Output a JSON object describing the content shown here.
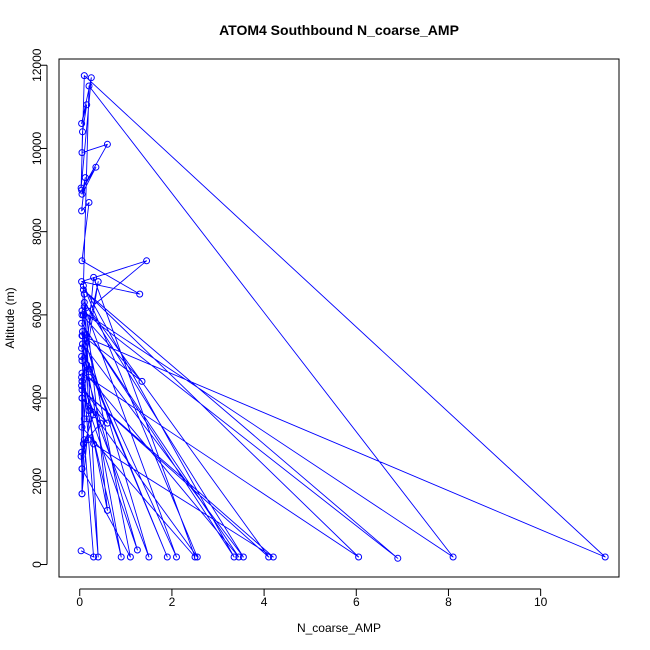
{
  "chart_data": {
    "type": "line",
    "title": "ATOM4 Southbound N_coarse_AMP",
    "xlabel": "N_coarse_AMP",
    "ylabel": "Altitude (m)",
    "xlim": [
      -0.45,
      11.7
    ],
    "ylim": [
      -300,
      12150
    ],
    "x_ticks": [
      0,
      2,
      4,
      6,
      8,
      10
    ],
    "y_ticks": [
      0,
      2000,
      4000,
      6000,
      8000,
      10000,
      12000
    ],
    "grid": false,
    "legend": "none",
    "color": "#0000ff",
    "marker": "open-circle",
    "series": [
      {
        "x": [
          0.03,
          0.3,
          0.1,
          0.05,
          0.2,
          0.9,
          0.15,
          0.05,
          1.1,
          0.08,
          0.2,
          1.25,
          0.04,
          0.4,
          0.1,
          0.6,
          0.05,
          1.5,
          0.06,
          0.2,
          1.9,
          0.04,
          2.1,
          0.1,
          0.05,
          2.5,
          0.3,
          0.05,
          2.55,
          0.08,
          3.35,
          0.04,
          3.45,
          0.2,
          0.06,
          3.55,
          0.1,
          4.1,
          0.05,
          4.2,
          0.3,
          0.05,
          6.05,
          0.08,
          6.9,
          0.05,
          8.1,
          0.2,
          0.05,
          11.4,
          0.1,
          0.03,
          0.25,
          0.04,
          0.15,
          0.06,
          0.05,
          0.6,
          0.04,
          0.35,
          0.05,
          0.12,
          0.04,
          0.2,
          0.05,
          1.3,
          0.04,
          1.45,
          0.05,
          1.35,
          0.06,
          0.05,
          0.4,
          0.04,
          0.6,
          0.05,
          0.45,
          0.08,
          0.05,
          0.3,
          0.04,
          0.18,
          0.03,
          0.05,
          0.1,
          0.04,
          0.05
        ],
        "y": [
          330,
          180,
          3000,
          1700,
          3500,
          180,
          4800,
          2300,
          180,
          6000,
          3700,
          350,
          5000,
          180,
          6500,
          1300,
          4400,
          180,
          5600,
          4700,
          180,
          5200,
          180,
          6200,
          3300,
          180,
          6900,
          4000,
          180,
          6700,
          180,
          5800,
          180,
          4500,
          5300,
          180,
          6300,
          180,
          4200,
          180,
          2900,
          4600,
          180,
          6600,
          150,
          6100,
          180,
          11500,
          5500,
          180,
          11750,
          9050,
          11700,
          10600,
          11050,
          10400,
          9900,
          10100,
          9000,
          9550,
          8900,
          9300,
          8500,
          8700,
          7300,
          6500,
          6800,
          7300,
          6000,
          4400,
          5500,
          4900,
          6800,
          4300,
          3400,
          4000,
          3400,
          2900,
          4400,
          3600,
          2700,
          3000,
          2600,
          2300,
          3500,
          4500,
          1700
        ]
      }
    ]
  }
}
